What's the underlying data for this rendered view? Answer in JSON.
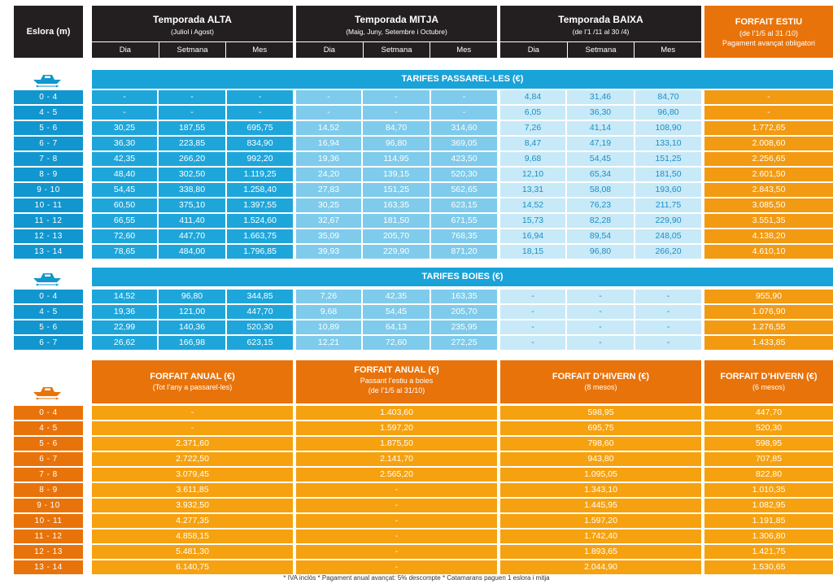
{
  "header": {
    "eslora_label": "Eslora (m)",
    "seasons": [
      {
        "title": "Temporada ALTA",
        "subtitle": "(Juliol i Agost)"
      },
      {
        "title": "Temporada MITJA",
        "subtitle": "(Maig, Juny, Setembre i Octubre)"
      },
      {
        "title": "Temporada BAIXA",
        "subtitle": "(de l’1 /11 al 30 /4)"
      }
    ],
    "sub_labels": [
      "Dia",
      "Setmana",
      "Mes"
    ],
    "estiu": {
      "title": "FORFAIT ESTIU",
      "line1": "(de l’1/5 al 31 /10)",
      "line2": "Pagament avançat obligatori"
    }
  },
  "passarel": {
    "title": "TARIFES PASSAREL·LES (€)",
    "rows": [
      {
        "label": "0 - 4",
        "alta": [
          "-",
          "-",
          "-"
        ],
        "mitja": [
          "-",
          "-",
          "-"
        ],
        "baixa": [
          "4,84",
          "31,46",
          "84,70"
        ],
        "estiu": "-"
      },
      {
        "label": "4 - 5",
        "alta": [
          "-",
          "-",
          "-"
        ],
        "mitja": [
          "-",
          "-",
          "-"
        ],
        "baixa": [
          "6,05",
          "36,30",
          "96,80"
        ],
        "estiu": "-"
      },
      {
        "label": "5 - 6",
        "alta": [
          "30,25",
          "187,55",
          "695,75"
        ],
        "mitja": [
          "14,52",
          "84,70",
          "314,60"
        ],
        "baixa": [
          "7,26",
          "41,14",
          "108,90"
        ],
        "estiu": "1.772,65"
      },
      {
        "label": "6 - 7",
        "alta": [
          "36,30",
          "223,85",
          "834,90"
        ],
        "mitja": [
          "16,94",
          "96,80",
          "369,05"
        ],
        "baixa": [
          "8,47",
          "47,19",
          "133,10"
        ],
        "estiu": "2.008,60"
      },
      {
        "label": "7 - 8",
        "alta": [
          "42,35",
          "266,20",
          "992,20"
        ],
        "mitja": [
          "19,36",
          "114,95",
          "423,50"
        ],
        "baixa": [
          "9,68",
          "54,45",
          "151,25"
        ],
        "estiu": "2.256,65"
      },
      {
        "label": "8 - 9",
        "alta": [
          "48,40",
          "302,50",
          "1.119,25"
        ],
        "mitja": [
          "24,20",
          "139,15",
          "520,30"
        ],
        "baixa": [
          "12,10",
          "65,34",
          "181,50"
        ],
        "estiu": "2.601,50"
      },
      {
        "label": "9 - 10",
        "alta": [
          "54,45",
          "338,80",
          "1.258,40"
        ],
        "mitja": [
          "27,83",
          "151,25",
          "562,65"
        ],
        "baixa": [
          "13,31",
          "58,08",
          "193,60"
        ],
        "estiu": "2.843,50"
      },
      {
        "label": "10 - 11",
        "alta": [
          "60,50",
          "375,10",
          "1.397,55"
        ],
        "mitja": [
          "30,25",
          "163,35",
          "623,15"
        ],
        "baixa": [
          "14,52",
          "76,23",
          "211,75"
        ],
        "estiu": "3.085,50"
      },
      {
        "label": "11 - 12",
        "alta": [
          "66,55",
          "411,40",
          "1.524,60"
        ],
        "mitja": [
          "32,67",
          "181,50",
          "671,55"
        ],
        "baixa": [
          "15,73",
          "82,28",
          "229,90"
        ],
        "estiu": "3.551,35"
      },
      {
        "label": "12 - 13",
        "alta": [
          "72,60",
          "447,70",
          "1.663,75"
        ],
        "mitja": [
          "35,09",
          "205,70",
          "768,35"
        ],
        "baixa": [
          "16,94",
          "89,54",
          "248,05"
        ],
        "estiu": "4.138,20"
      },
      {
        "label": "13 - 14",
        "alta": [
          "78,65",
          "484,00",
          "1.796,85"
        ],
        "mitja": [
          "39,93",
          "229,90",
          "871,20"
        ],
        "baixa": [
          "18,15",
          "96,80",
          "266,20"
        ],
        "estiu": "4.610,10"
      }
    ]
  },
  "boies": {
    "title": "TARIFES BOIES (€)",
    "rows": [
      {
        "label": "0 - 4",
        "alta": [
          "14,52",
          "96,80",
          "344,85"
        ],
        "mitja": [
          "7,26",
          "42,35",
          "163,35"
        ],
        "baixa": [
          "-",
          "-",
          "-"
        ],
        "estiu": "955,90"
      },
      {
        "label": "4 - 5",
        "alta": [
          "19,36",
          "121,00",
          "447,70"
        ],
        "mitja": [
          "9,68",
          "54,45",
          "205,70"
        ],
        "baixa": [
          "-",
          "-",
          "-"
        ],
        "estiu": "1.076,90"
      },
      {
        "label": "5 - 6",
        "alta": [
          "22,99",
          "140,36",
          "520,30"
        ],
        "mitja": [
          "10,89",
          "64,13",
          "235,95"
        ],
        "baixa": [
          "-",
          "-",
          "-"
        ],
        "estiu": "1.276,55"
      },
      {
        "label": "6 - 7",
        "alta": [
          "26,62",
          "166,98",
          "623,15"
        ],
        "mitja": [
          "12,21",
          "72,60",
          "272,25"
        ],
        "baixa": [
          "-",
          "-",
          "-"
        ],
        "estiu": "1.433,85"
      }
    ]
  },
  "forfaits": {
    "headers": [
      {
        "title": "FORFAIT ANUAL (€)",
        "lines": [
          "(Tot l’any a passarel·les)"
        ]
      },
      {
        "title": "FORFAIT ANUAL (€)",
        "lines": [
          "Passant l’estiu a boies",
          "(de l’1/5 al 31/10)"
        ]
      },
      {
        "title": "FORFAIT D’HIVERN (€)",
        "lines": [
          "(8 mesos)"
        ]
      },
      {
        "title": "FORFAIT D’HIVERN  (€)",
        "lines": [
          "(6 mesos)"
        ]
      }
    ],
    "rows": [
      {
        "label": "0 - 4",
        "values": [
          "-",
          "1.403,60",
          "598,95",
          "447,70"
        ]
      },
      {
        "label": "4 - 5",
        "values": [
          "-",
          "1.597,20",
          "695,75",
          "520,30"
        ]
      },
      {
        "label": "5 - 6",
        "values": [
          "2.371,60",
          "1.875,50",
          "798,60",
          "598,95"
        ]
      },
      {
        "label": "6 - 7",
        "values": [
          "2.722,50",
          "2.141,70",
          "943,80",
          "707,85"
        ]
      },
      {
        "label": "7 - 8",
        "values": [
          "3.079,45",
          "2.565,20",
          "1.095,05",
          "822,80"
        ]
      },
      {
        "label": "8 - 9",
        "values": [
          "3.611,85",
          "-",
          "1.343,10",
          "1.010,35"
        ]
      },
      {
        "label": "9 - 10",
        "values": [
          "3.932,50",
          "-",
          "1.445,95",
          "1.082,95"
        ]
      },
      {
        "label": "10 - 11",
        "values": [
          "4.277,35",
          "-",
          "1.597,20",
          "1.191,85"
        ]
      },
      {
        "label": "11 - 12",
        "values": [
          "4.858,15",
          "-",
          "1.742,40",
          "1.306,80"
        ]
      },
      {
        "label": "12 - 13",
        "values": [
          "5.481,30",
          "-",
          "1.893,65",
          "1.421,75"
        ]
      },
      {
        "label": "13 - 14",
        "values": [
          "6.140,75",
          "-",
          "2.044,90",
          "1.530,65"
        ]
      }
    ]
  },
  "footer": "* IVA inclòs   * Pagament anual avançat: 5% descompte   * Catamarans paguen 1 eslora i mitja",
  "icons": {
    "passarel": "boat-icon",
    "boies": "boat-icon",
    "forfait": "boat-icon"
  },
  "colors": {
    "header_dark": "#231f20",
    "blue": "#1aa3d8",
    "orange": "#e8730a"
  }
}
